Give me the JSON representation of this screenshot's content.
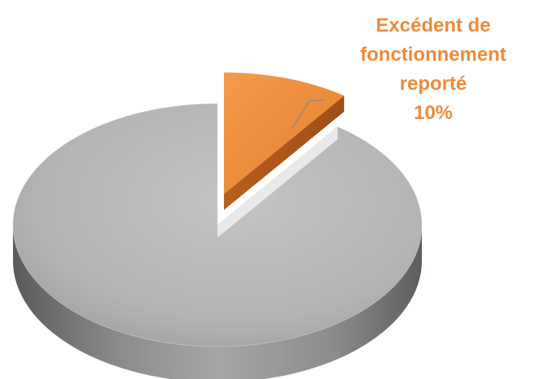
{
  "chart_data": {
    "type": "pie",
    "slices": [
      {
        "label": "Excédent de fonctionnement reporté",
        "value": 10,
        "percent_label": "10%",
        "color": "#ee8a3a",
        "exploded": true
      },
      {
        "label": "",
        "value": 90,
        "percent_label": "",
        "color": "#b4b4b4",
        "exploded": false
      }
    ],
    "style": "3d-exploded",
    "legend": "none"
  },
  "labels": {
    "line1": "Excédent de",
    "line2": "fonctionnement",
    "line3": "reporté",
    "percent": "10%"
  }
}
